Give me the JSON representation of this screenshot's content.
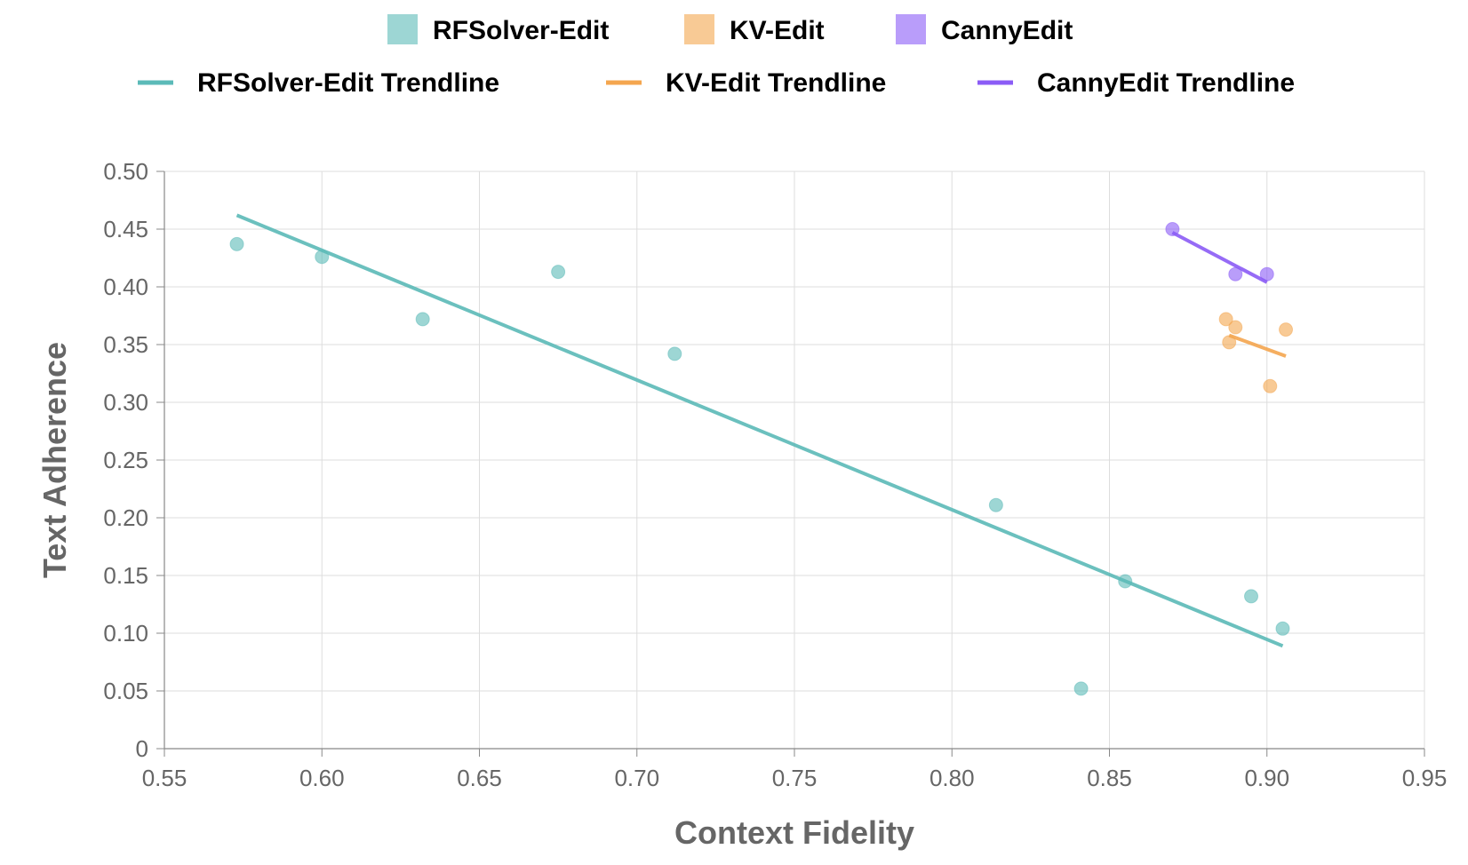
{
  "chart_data": {
    "type": "scatter",
    "xlabel": "Context Fidelity",
    "ylabel": "Text Adherence",
    "xlim": [
      0.55,
      0.95
    ],
    "ylim": [
      0,
      0.5
    ],
    "x_ticks": [
      "0.55",
      "0.60",
      "0.65",
      "0.70",
      "0.75",
      "0.80",
      "0.85",
      "0.90",
      "0.95"
    ],
    "y_ticks": [
      "0",
      "0.05",
      "0.10",
      "0.15",
      "0.20",
      "0.25",
      "0.30",
      "0.35",
      "0.40",
      "0.45",
      "0.50"
    ],
    "grid": true,
    "legend_position": "top",
    "series": [
      {
        "name": "RFSolver-Edit",
        "color": "#5bbab8",
        "points": [
          {
            "x": 0.573,
            "y": 0.437
          },
          {
            "x": 0.6,
            "y": 0.426
          },
          {
            "x": 0.632,
            "y": 0.372
          },
          {
            "x": 0.675,
            "y": 0.413
          },
          {
            "x": 0.712,
            "y": 0.342
          },
          {
            "x": 0.814,
            "y": 0.211
          },
          {
            "x": 0.841,
            "y": 0.052
          },
          {
            "x": 0.855,
            "y": 0.145
          },
          {
            "x": 0.895,
            "y": 0.132
          },
          {
            "x": 0.905,
            "y": 0.104
          }
        ],
        "trendline": {
          "name": "RFSolver-Edit Trendline",
          "x": [
            0.573,
            0.905
          ],
          "y": [
            0.462,
            0.089
          ]
        }
      },
      {
        "name": "KV-Edit",
        "color": "#f4a64f",
        "points": [
          {
            "x": 0.887,
            "y": 0.372
          },
          {
            "x": 0.888,
            "y": 0.352
          },
          {
            "x": 0.89,
            "y": 0.365
          },
          {
            "x": 0.901,
            "y": 0.314
          },
          {
            "x": 0.906,
            "y": 0.363
          }
        ],
        "trendline": {
          "name": "KV-Edit Trendline",
          "x": [
            0.888,
            0.906
          ],
          "y": [
            0.358,
            0.34
          ]
        }
      },
      {
        "name": "CannyEdit",
        "color": "#8b5cf6",
        "points": [
          {
            "x": 0.87,
            "y": 0.45
          },
          {
            "x": 0.89,
            "y": 0.411
          },
          {
            "x": 0.9,
            "y": 0.411
          }
        ],
        "trendline": {
          "name": "CannyEdit Trendline",
          "x": [
            0.87,
            0.9
          ],
          "y": [
            0.447,
            0.404
          ]
        }
      }
    ]
  }
}
